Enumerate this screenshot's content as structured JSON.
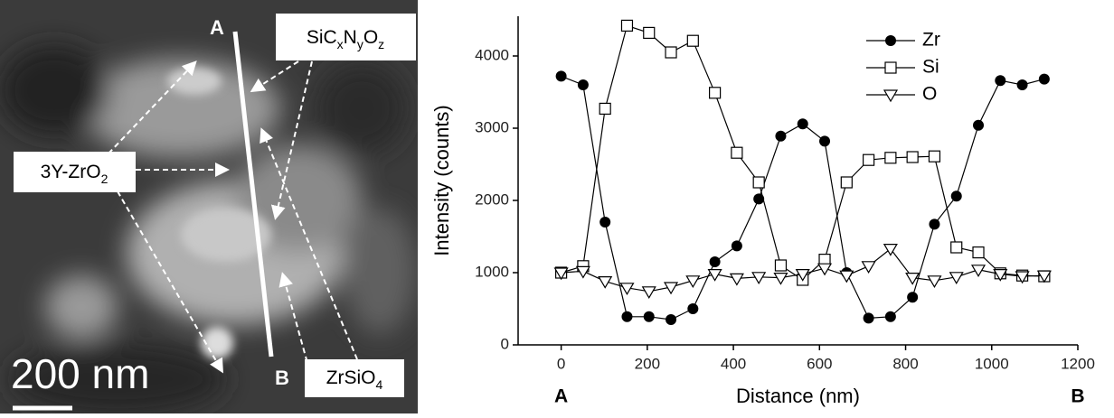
{
  "image_panel": {
    "endpoints": [
      "A",
      "B"
    ],
    "annotations": [
      {
        "parts": [
          "SiC",
          "x",
          "N",
          "y",
          "O",
          "z"
        ]
      },
      {
        "parts": [
          "3Y-ZrO",
          "2"
        ]
      },
      {
        "parts": [
          "ZrSiO",
          "4"
        ]
      }
    ],
    "scale_bar": "200 nm"
  },
  "chart_data": {
    "type": "line",
    "xlabel": "Distance (nm)",
    "ylabel": "Intensity (counts)",
    "endpoint_labels": [
      "A",
      "B"
    ],
    "x": [
      0,
      51,
      102,
      153,
      204,
      255,
      306,
      357,
      408,
      459,
      510,
      561,
      612,
      663,
      714,
      765,
      816,
      867,
      918,
      969,
      1020,
      1071,
      1122
    ],
    "series": [
      {
        "name": "Zr",
        "color": "#000000",
        "marker": "circle-filled",
        "values": [
          3720,
          3600,
          1700,
          390,
          390,
          350,
          500,
          1150,
          1370,
          2020,
          2890,
          3060,
          2820,
          1000,
          370,
          390,
          660,
          1670,
          2060,
          3040,
          3660,
          3600,
          3680
        ]
      },
      {
        "name": "Si",
        "color": "#000000",
        "marker": "square-open",
        "values": [
          1000,
          1090,
          3270,
          4420,
          4320,
          4050,
          4210,
          3490,
          2660,
          2250,
          1100,
          900,
          1180,
          2250,
          2560,
          2590,
          2600,
          2610,
          1350,
          1280,
          990,
          960,
          950
        ]
      },
      {
        "name": "O",
        "color": "#000000",
        "marker": "triangle-down-open",
        "values": [
          1000,
          1020,
          880,
          790,
          740,
          800,
          890,
          980,
          920,
          940,
          930,
          980,
          1060,
          960,
          1090,
          1330,
          930,
          890,
          940,
          1040,
          980,
          950,
          960
        ]
      }
    ],
    "xlim": [
      -100,
      1200
    ],
    "xticks": [
      0,
      200,
      400,
      600,
      800,
      1000,
      1200
    ],
    "ylim": [
      0,
      4550
    ],
    "yticks": [
      0,
      1000,
      2000,
      3000,
      4000
    ],
    "legend": "top-center",
    "grid": false
  }
}
